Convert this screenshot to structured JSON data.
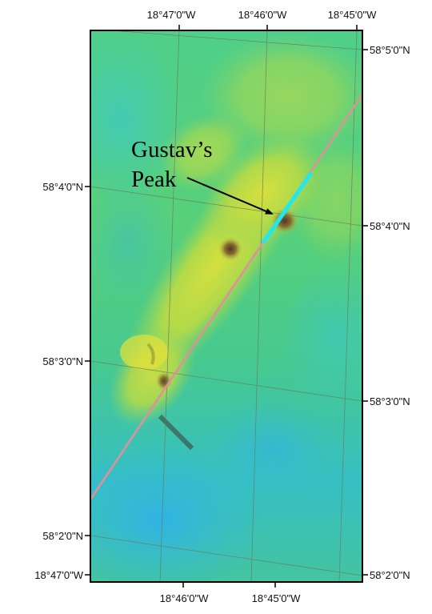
{
  "map": {
    "top_labels": [
      "18°47'0\"W",
      "18°46'0\"W",
      "18°45'0\"W"
    ],
    "bottom_labels": [
      "18°46'0\"W",
      "18°45'0\"W"
    ],
    "bottom_left_corner_label": "18°47'0\"W",
    "left_labels": [
      "58°4'0\"N",
      "58°3'0\"N",
      "58°2'0\"N"
    ],
    "right_labels": [
      "58°5'0\"N",
      "58°4'0\"N",
      "58°3'0\"N",
      "58°2'0\"N"
    ],
    "annotation": {
      "line1": "Gustav’s",
      "line2": "Peak"
    },
    "colors": {
      "track_line": "#e0909a",
      "highlight_segment": "#20e8f0",
      "grid_line": "#6a7a60",
      "frame": "#000000",
      "deep": "#2fb8e0",
      "mid": "#4fcf8a",
      "shallow": "#d8de3a"
    }
  }
}
